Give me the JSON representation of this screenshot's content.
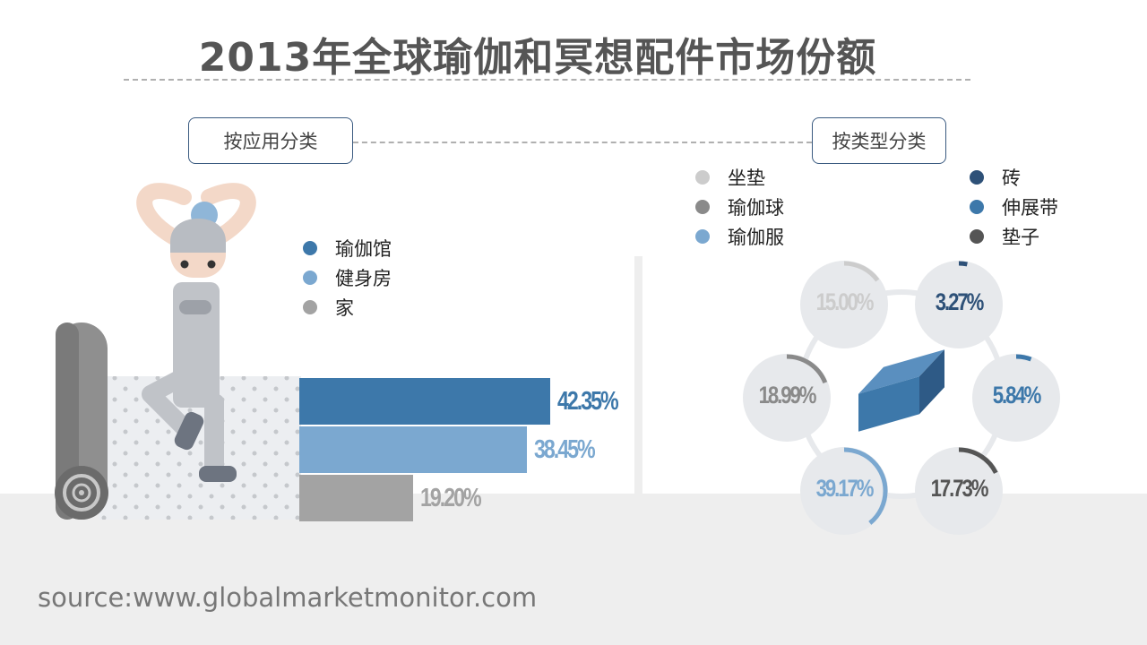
{
  "title": "2013年全球瑜伽和冥想配件市场份额",
  "source": "source:www.globalmarketmonitor.com",
  "colors": {
    "dark_blue": "#2e5178",
    "mid_blue": "#3d78aa",
    "light_blue": "#7ba8d0",
    "gray": "#a3a3a3",
    "dark_gray": "#555555",
    "light_gray": "#cccccc",
    "mid_gray": "#8a8a8a"
  },
  "chart_data": [
    {
      "type": "bar",
      "panel_label": "按应用分类",
      "orientation": "horizontal",
      "categories": [
        "瑜伽馆",
        "健身房",
        "家"
      ],
      "values": [
        42.35,
        38.45,
        19.2
      ],
      "value_labels": [
        "42.35%",
        "38.45%",
        "19.20%"
      ],
      "colors": [
        "#3d78aa",
        "#7ba8d0",
        "#a3a3a3"
      ],
      "legend_position": "top"
    },
    {
      "type": "pie",
      "panel_label": "按类型分类",
      "categories": [
        "坐垫",
        "瑜伽球",
        "瑜伽服",
        "砖",
        "伸展带",
        "垫子"
      ],
      "values": [
        15.0,
        18.99,
        39.17,
        3.27,
        5.84,
        17.73
      ],
      "value_labels": [
        "15.00%",
        "18.99%",
        "39.17%",
        "3.27%",
        "5.84%",
        "17.73%"
      ],
      "colors": [
        "#cccccc",
        "#8a8a8a",
        "#7ba8d0",
        "#2e5178",
        "#3d78aa",
        "#555555"
      ],
      "legend_position": "top"
    }
  ]
}
